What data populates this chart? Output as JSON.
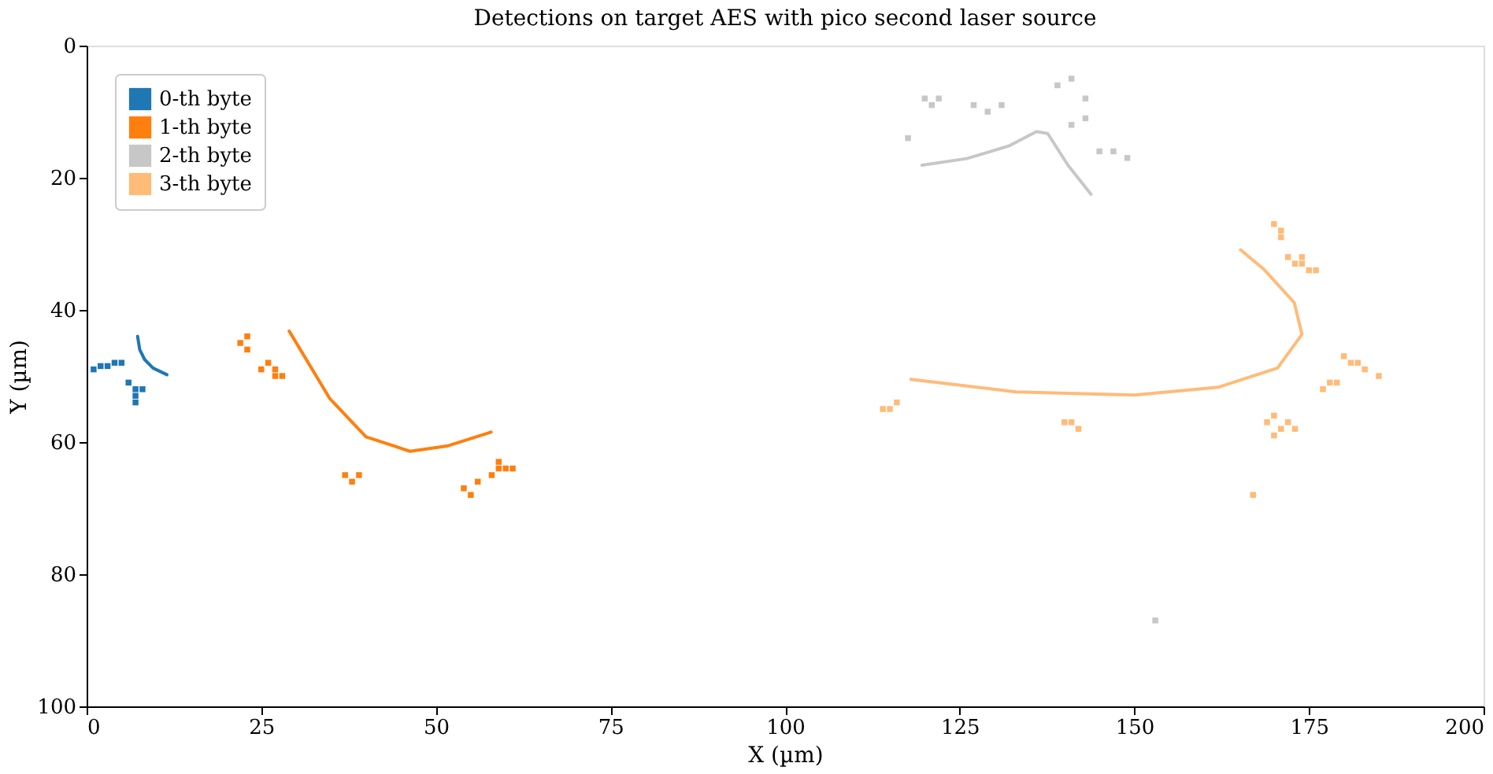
{
  "chart_data": {
    "type": "scatter",
    "title": "Detections on target AES with pico second laser source",
    "xlabel": "X (µm)",
    "ylabel": "Y (µm)",
    "xlim": [
      0,
      200
    ],
    "ylim": [
      100,
      0
    ],
    "xticks": [
      0,
      25,
      50,
      75,
      100,
      125,
      150,
      175,
      200
    ],
    "yticks": [
      0,
      20,
      40,
      60,
      80,
      100
    ],
    "grid": false,
    "legend": "top left",
    "marker": "square",
    "series": [
      {
        "name": "0-th byte",
        "color": "#1f77b4",
        "x": [
          1,
          2,
          3,
          4,
          5,
          6,
          7,
          7,
          8,
          7
        ],
        "values": [
          49,
          48.5,
          48.5,
          48,
          48,
          51,
          52,
          53,
          52,
          54
        ]
      },
      {
        "name": "1-th byte",
        "color": "#ff7f0e",
        "x": [
          22,
          23,
          23,
          25,
          26,
          27,
          27,
          28,
          37,
          38,
          39,
          54,
          55,
          56,
          58,
          59,
          60,
          61,
          59
        ],
        "values": [
          45,
          44,
          46,
          49,
          48,
          49,
          50,
          50,
          65,
          66,
          65,
          67,
          68,
          66,
          65,
          64,
          64,
          64,
          63
        ]
      },
      {
        "name": "2-th byte",
        "color": "#c7c7c7",
        "x": [
          120,
          121,
          122,
          127,
          129,
          131,
          139,
          141,
          143,
          141,
          143,
          145,
          147,
          149,
          117.6,
          153
        ],
        "values": [
          8,
          9,
          8,
          9,
          10,
          9,
          6,
          5,
          8,
          12,
          11,
          16,
          16,
          17,
          14,
          87
        ]
      },
      {
        "name": "3-th byte",
        "color": "#ffbb78",
        "x": [
          115,
          116,
          114,
          140,
          141,
          142,
          170,
          171,
          171,
          172,
          173,
          174,
          175,
          176,
          174,
          180,
          181,
          182,
          183,
          185,
          178,
          177,
          179,
          169,
          170,
          171,
          172,
          170,
          173,
          167
        ],
        "values": [
          55,
          54,
          55,
          57,
          57,
          58,
          27,
          28,
          29,
          32,
          33,
          33,
          34,
          34,
          32,
          47,
          48,
          48,
          49,
          50,
          51,
          52,
          51,
          57,
          56,
          58,
          57,
          59,
          58,
          68
        ]
      },
      {
        "type": "line",
        "color": "#1f77b4",
        "line_style": "solid",
        "marker": "none",
        "x": [
          7.3,
          7.6,
          8.3,
          9.5,
          11.5
        ],
        "values": [
          44,
          46,
          47.5,
          48.8,
          49.8
        ]
      },
      {
        "type": "line",
        "color": "#ff7f0e",
        "line_style": "solid",
        "marker": "none",
        "x": [
          29,
          34.8,
          40,
          46.3,
          51.6,
          57.9
        ],
        "values": [
          43.2,
          53.4,
          59.2,
          61.4,
          60.6,
          58.5
        ]
      },
      {
        "type": "line",
        "color": "#c7c7c7",
        "line_style": "solid",
        "marker": "none",
        "x": [
          119.6,
          126,
          132,
          136,
          137.6,
          140.5,
          143.8
        ],
        "values": [
          18.1,
          17.1,
          15.2,
          13,
          13.3,
          18.1,
          22.5
        ]
      },
      {
        "type": "line",
        "color": "#ffbb78",
        "line_style": "solid",
        "marker": "none",
        "x": [
          118,
          133,
          150,
          162,
          170.5,
          174,
          172.9,
          168.5,
          165.2
        ],
        "values": [
          50.5,
          52.4,
          52.9,
          51.7,
          48.8,
          43.7,
          38.9,
          33.8,
          30.9
        ]
      }
    ]
  }
}
